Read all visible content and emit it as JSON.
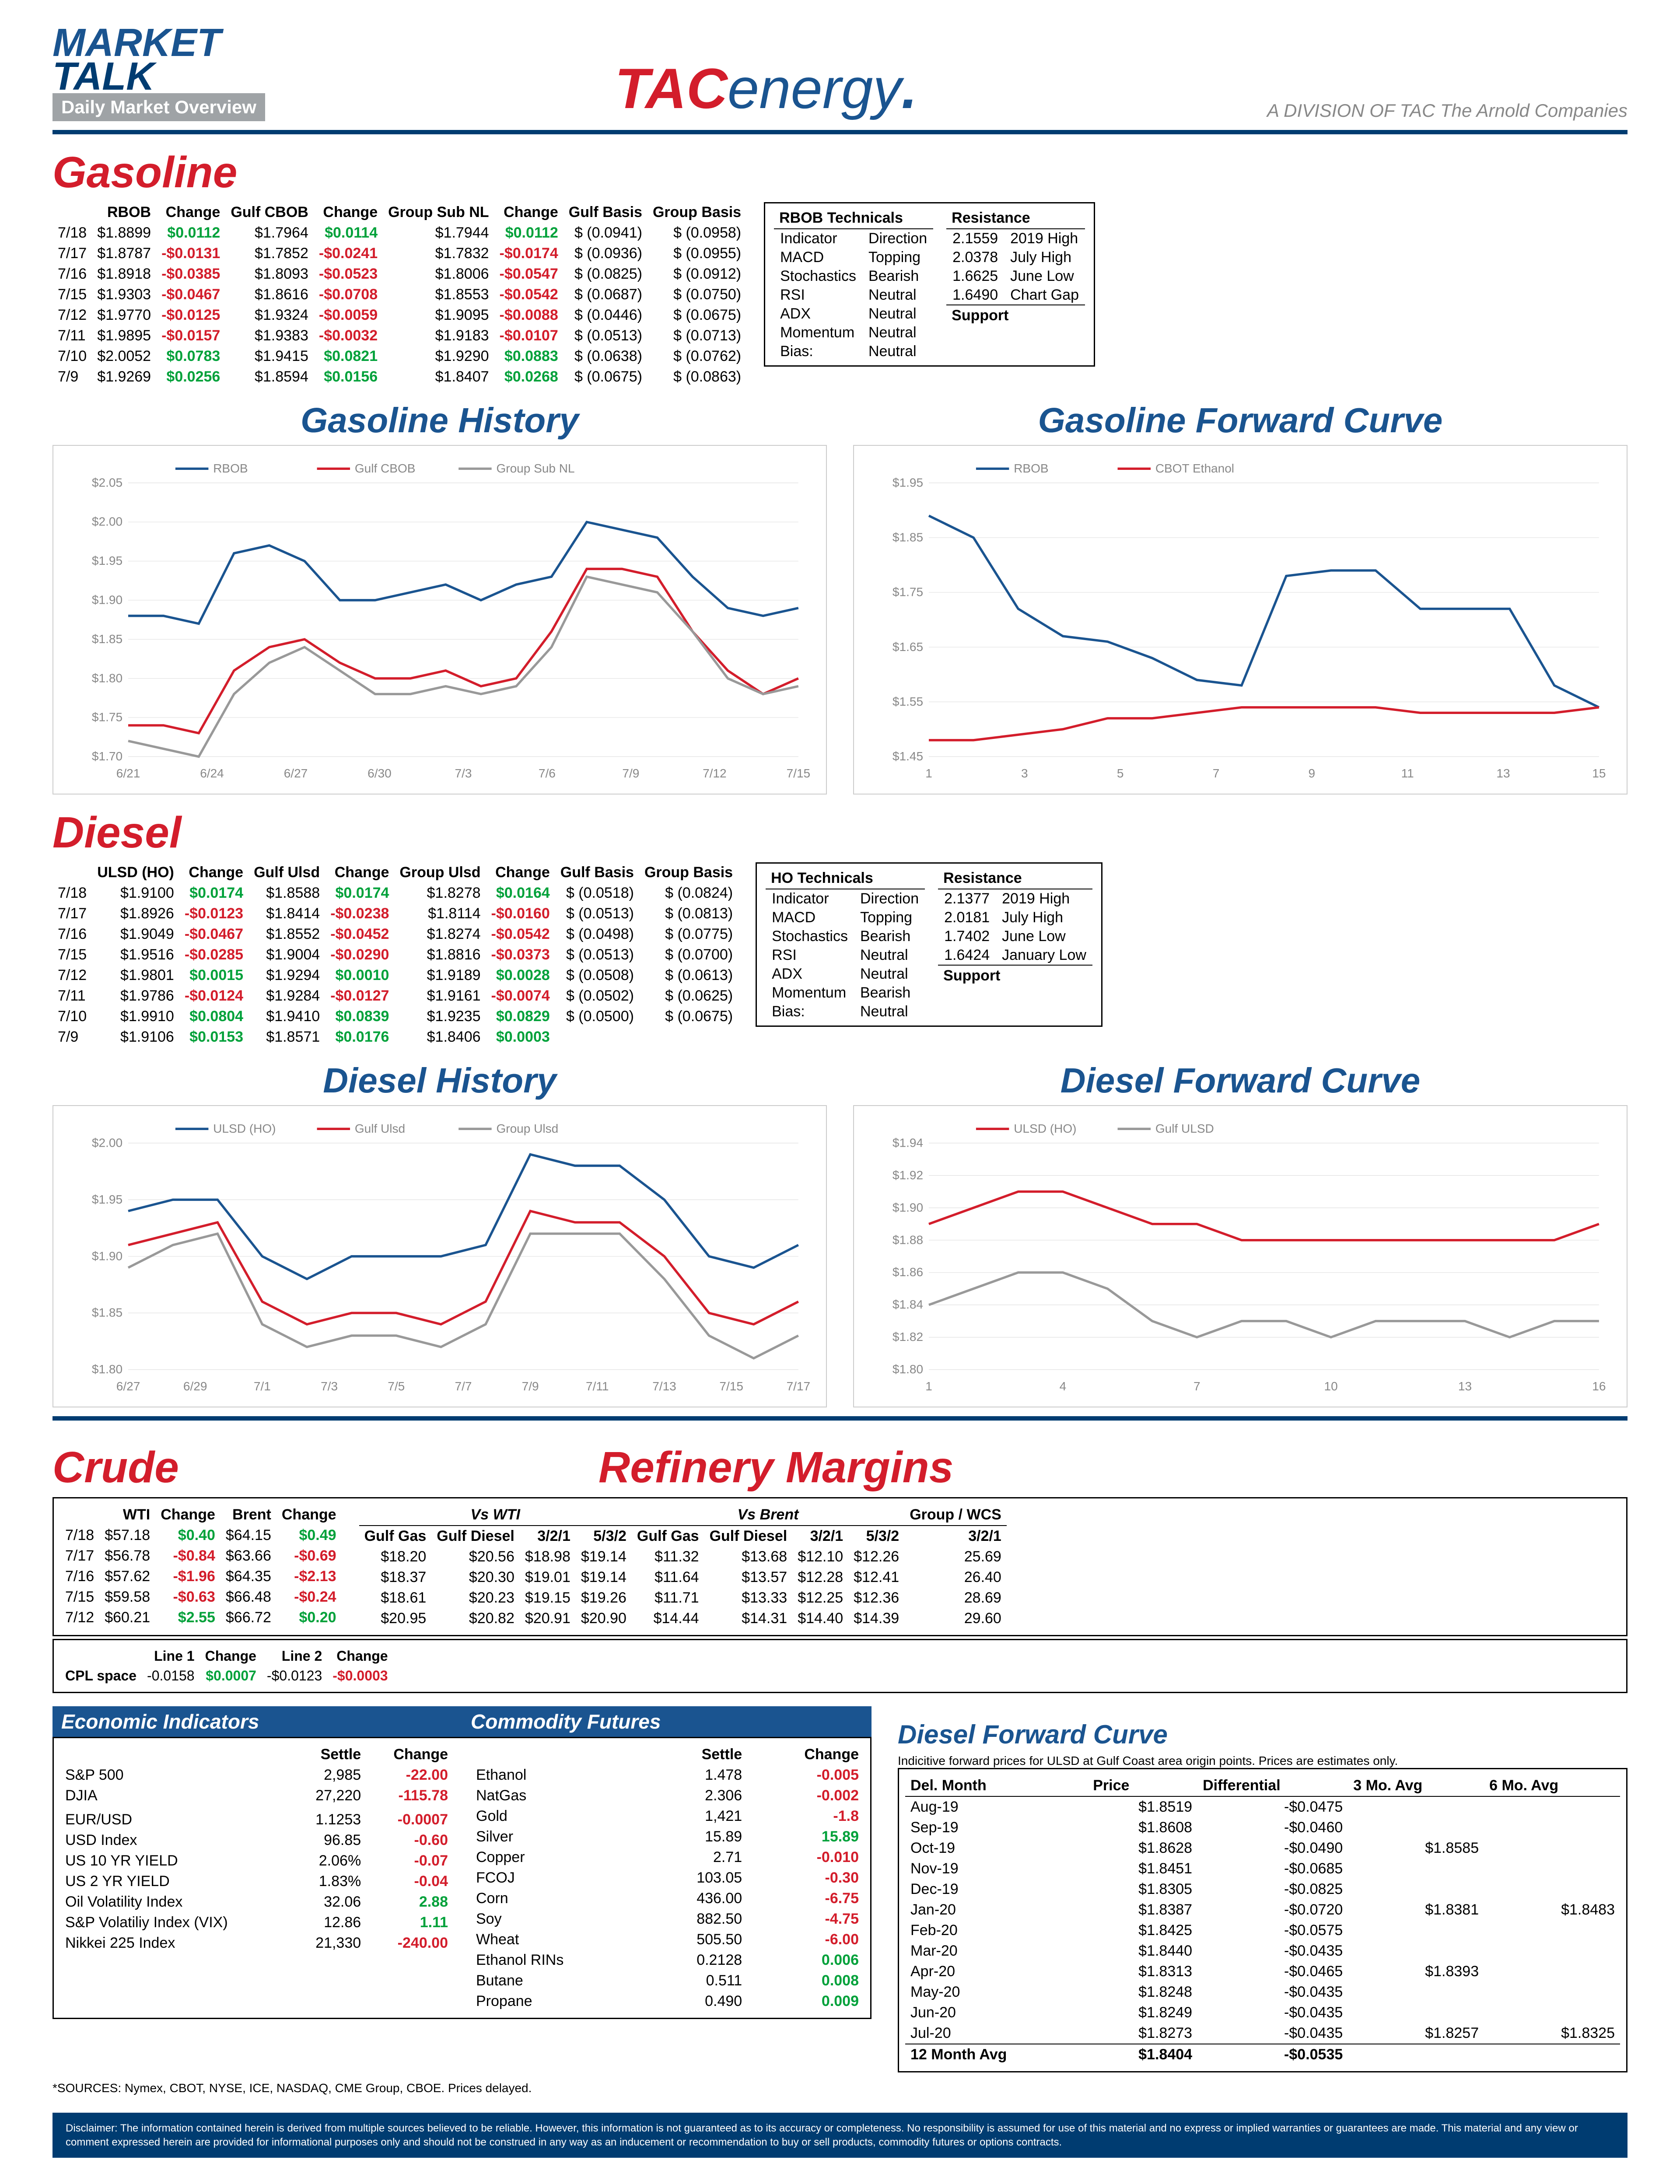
{
  "header": {
    "market": "MARKET",
    "talk": "TALK",
    "dmo": "Daily Market Overview",
    "tac_t": "TAC",
    "tac_e": "energy",
    "tagline": "A DIVISION OF TAC The Arnold Companies"
  },
  "gasoline": {
    "title": "Gasoline",
    "headers": [
      "",
      "RBOB",
      "Change",
      "Gulf CBOB",
      "Change",
      "Group Sub NL",
      "Change",
      "Gulf Basis",
      "Group Basis"
    ],
    "rows": [
      [
        "7/18",
        "$1.8899",
        "$0.0112",
        "$1.7964",
        "$0.0114",
        "$1.7944",
        "$0.0112",
        "$ (0.0941)",
        "$ (0.0958)"
      ],
      [
        "7/17",
        "$1.8787",
        "-$0.0131",
        "$1.7852",
        "-$0.0241",
        "$1.7832",
        "-$0.0174",
        "$ (0.0936)",
        "$ (0.0955)"
      ],
      [
        "7/16",
        "$1.8918",
        "-$0.0385",
        "$1.8093",
        "-$0.0523",
        "$1.8006",
        "-$0.0547",
        "$ (0.0825)",
        "$ (0.0912)"
      ],
      [
        "7/15",
        "$1.9303",
        "-$0.0467",
        "$1.8616",
        "-$0.0708",
        "$1.8553",
        "-$0.0542",
        "$ (0.0687)",
        "$ (0.0750)"
      ],
      [
        "7/12",
        "$1.9770",
        "-$0.0125",
        "$1.9324",
        "-$0.0059",
        "$1.9095",
        "-$0.0088",
        "$ (0.0446)",
        "$ (0.0675)"
      ],
      [
        "7/11",
        "$1.9895",
        "-$0.0157",
        "$1.9383",
        "-$0.0032",
        "$1.9183",
        "-$0.0107",
        "$ (0.0513)",
        "$ (0.0713)"
      ],
      [
        "7/10",
        "$2.0052",
        "$0.0783",
        "$1.9415",
        "$0.0821",
        "$1.9290",
        "$0.0883",
        "$ (0.0638)",
        "$ (0.0762)"
      ],
      [
        "7/9",
        "$1.9269",
        "$0.0256",
        "$1.8594",
        "$0.0156",
        "$1.8407",
        "$0.0268",
        "$ (0.0675)",
        "$ (0.0863)"
      ]
    ],
    "tech": {
      "title": "RBOB Technicals",
      "rows": [
        [
          "Indicator",
          "Direction"
        ],
        [
          "MACD",
          "Topping"
        ],
        [
          "Stochastics",
          "Bearish"
        ],
        [
          "RSI",
          "Neutral"
        ],
        [
          "ADX",
          "Neutral"
        ],
        [
          "Momentum",
          "Neutral"
        ],
        [
          "Bias:",
          "Neutral"
        ]
      ],
      "res_title": "Resistance",
      "res": [
        [
          "2.1559",
          "2019 High"
        ],
        [
          "2.0378",
          "July High"
        ],
        [
          "1.6625",
          "June Low"
        ],
        [
          "1.6490",
          "Chart Gap"
        ]
      ],
      "sup_title": "Support"
    },
    "history": {
      "title": "Gasoline History",
      "series": [
        {
          "name": "RBOB",
          "color": "#1a5490"
        },
        {
          "name": "Gulf CBOB",
          "color": "#d31d2b"
        },
        {
          "name": "Group Sub NL",
          "color": "#999"
        }
      ],
      "xlabels": [
        "6/21",
        "6/24",
        "6/27",
        "6/30",
        "7/3",
        "7/6",
        "7/9",
        "7/12",
        "7/15"
      ],
      "ylabels": [
        "$1.70",
        "$1.75",
        "$1.80",
        "$1.85",
        "$1.90",
        "$1.95",
        "$2.00",
        "$2.05"
      ],
      "rbob": [
        1.88,
        1.88,
        1.87,
        1.96,
        1.97,
        1.95,
        1.9,
        1.9,
        1.91,
        1.92,
        1.9,
        1.92,
        1.93,
        2.0,
        1.99,
        1.98,
        1.93,
        1.89,
        1.88,
        1.89
      ],
      "cbob": [
        1.74,
        1.74,
        1.73,
        1.81,
        1.84,
        1.85,
        1.82,
        1.8,
        1.8,
        1.81,
        1.79,
        1.8,
        1.86,
        1.94,
        1.94,
        1.93,
        1.86,
        1.81,
        1.78,
        1.8
      ],
      "group": [
        1.72,
        1.71,
        1.7,
        1.78,
        1.82,
        1.84,
        1.81,
        1.78,
        1.78,
        1.79,
        1.78,
        1.79,
        1.84,
        1.93,
        1.92,
        1.91,
        1.86,
        1.8,
        1.78,
        1.79
      ],
      "ymin": 1.7,
      "ymax": 2.05
    },
    "forward": {
      "title": "Gasoline Forward Curve",
      "series": [
        {
          "name": "RBOB",
          "color": "#1a5490"
        },
        {
          "name": "CBOT Ethanol",
          "color": "#d31d2b"
        }
      ],
      "xlabels": [
        "1",
        "3",
        "5",
        "7",
        "9",
        "11",
        "13",
        "15"
      ],
      "ylabels": [
        "$1.45",
        "$1.55",
        "$1.65",
        "$1.75",
        "$1.85",
        "$1.95"
      ],
      "rbob": [
        1.89,
        1.85,
        1.72,
        1.67,
        1.66,
        1.63,
        1.59,
        1.58,
        1.78,
        1.79,
        1.79,
        1.72,
        1.72,
        1.72,
        1.58,
        1.54
      ],
      "eth": [
        1.48,
        1.48,
        1.49,
        1.5,
        1.52,
        1.52,
        1.53,
        1.54,
        1.54,
        1.54,
        1.54,
        1.53,
        1.53,
        1.53,
        1.53,
        1.54
      ],
      "ymin": 1.45,
      "ymax": 1.95
    }
  },
  "diesel": {
    "title": "Diesel",
    "headers": [
      "",
      "ULSD (HO)",
      "Change",
      "Gulf Ulsd",
      "Change",
      "Group Ulsd",
      "Change",
      "Gulf Basis",
      "Group Basis"
    ],
    "rows": [
      [
        "7/18",
        "$1.9100",
        "$0.0174",
        "$1.8588",
        "$0.0174",
        "$1.8278",
        "$0.0164",
        "$ (0.0518)",
        "$ (0.0824)"
      ],
      [
        "7/17",
        "$1.8926",
        "-$0.0123",
        "$1.8414",
        "-$0.0238",
        "$1.8114",
        "-$0.0160",
        "$ (0.0513)",
        "$ (0.0813)"
      ],
      [
        "7/16",
        "$1.9049",
        "-$0.0467",
        "$1.8552",
        "-$0.0452",
        "$1.8274",
        "-$0.0542",
        "$ (0.0498)",
        "$ (0.0775)"
      ],
      [
        "7/15",
        "$1.9516",
        "-$0.0285",
        "$1.9004",
        "-$0.0290",
        "$1.8816",
        "-$0.0373",
        "$ (0.0513)",
        "$ (0.0700)"
      ],
      [
        "7/12",
        "$1.9801",
        "$0.0015",
        "$1.9294",
        "$0.0010",
        "$1.9189",
        "$0.0028",
        "$ (0.0508)",
        "$ (0.0613)"
      ],
      [
        "7/11",
        "$1.9786",
        "-$0.0124",
        "$1.9284",
        "-$0.0127",
        "$1.9161",
        "-$0.0074",
        "$ (0.0502)",
        "$ (0.0625)"
      ],
      [
        "7/10",
        "$1.9910",
        "$0.0804",
        "$1.9410",
        "$0.0839",
        "$1.9235",
        "$0.0829",
        "$ (0.0500)",
        "$ (0.0675)"
      ],
      [
        "7/9",
        "$1.9106",
        "$0.0153",
        "$1.8571",
        "$0.0176",
        "$1.8406",
        "$0.0003",
        "",
        ""
      ]
    ],
    "tech": {
      "title": "HO Technicals",
      "rows": [
        [
          "Indicator",
          "Direction"
        ],
        [
          "MACD",
          "Topping"
        ],
        [
          "Stochastics",
          "Bearish"
        ],
        [
          "RSI",
          "Neutral"
        ],
        [
          "ADX",
          "Neutral"
        ],
        [
          "Momentum",
          "Bearish"
        ],
        [
          "Bias:",
          "Neutral"
        ]
      ],
      "res_title": "Resistance",
      "res": [
        [
          "2.1377",
          "2019 High"
        ],
        [
          "2.0181",
          "July High"
        ],
        [
          "1.7402",
          "June Low"
        ],
        [
          "1.6424",
          "January Low"
        ]
      ],
      "sup_title": "Support"
    },
    "history": {
      "title": "Diesel History",
      "series": [
        {
          "name": "ULSD (HO)",
          "color": "#1a5490"
        },
        {
          "name": "Gulf Ulsd",
          "color": "#d31d2b"
        },
        {
          "name": "Group Ulsd",
          "color": "#999"
        }
      ],
      "xlabels": [
        "6/27",
        "6/29",
        "7/1",
        "7/3",
        "7/5",
        "7/7",
        "7/9",
        "7/11",
        "7/13",
        "7/15",
        "7/17"
      ],
      "ylabels": [
        "$1.80",
        "$1.85",
        "$1.90",
        "$1.95",
        "$2.00"
      ],
      "ulsd": [
        1.94,
        1.95,
        1.95,
        1.9,
        1.88,
        1.9,
        1.9,
        1.9,
        1.91,
        1.99,
        1.98,
        1.98,
        1.95,
        1.9,
        1.89,
        1.91
      ],
      "gulf": [
        1.91,
        1.92,
        1.93,
        1.86,
        1.84,
        1.85,
        1.85,
        1.84,
        1.86,
        1.94,
        1.93,
        1.93,
        1.9,
        1.85,
        1.84,
        1.86
      ],
      "group": [
        1.89,
        1.91,
        1.92,
        1.84,
        1.82,
        1.83,
        1.83,
        1.82,
        1.84,
        1.92,
        1.92,
        1.92,
        1.88,
        1.83,
        1.81,
        1.83
      ],
      "ymin": 1.8,
      "ymax": 2.0
    },
    "forward": {
      "title": "Diesel Forward Curve",
      "series": [
        {
          "name": "ULSD (HO)",
          "color": "#d31d2b"
        },
        {
          "name": "Gulf ULSD",
          "color": "#999"
        }
      ],
      "xlabels": [
        "1",
        "4",
        "7",
        "10",
        "13",
        "16"
      ],
      "ylabels": [
        "$1.80",
        "$1.82",
        "$1.84",
        "$1.86",
        "$1.88",
        "$1.90",
        "$1.92",
        "$1.94"
      ],
      "ulsd": [
        1.89,
        1.9,
        1.91,
        1.91,
        1.9,
        1.89,
        1.89,
        1.88,
        1.88,
        1.88,
        1.88,
        1.88,
        1.88,
        1.88,
        1.88,
        1.89
      ],
      "gulf": [
        1.84,
        1.85,
        1.86,
        1.86,
        1.85,
        1.83,
        1.82,
        1.83,
        1.83,
        1.82,
        1.83,
        1.83,
        1.83,
        1.82,
        1.83,
        1.83
      ],
      "ymin": 1.8,
      "ymax": 1.94
    }
  },
  "crude": {
    "title": "Crude",
    "headers": [
      "",
      "WTI",
      "Change",
      "Brent",
      "Change"
    ],
    "rows": [
      [
        "7/18",
        "$57.18",
        "$0.40",
        "$64.15",
        "$0.49"
      ],
      [
        "7/17",
        "$56.78",
        "-$0.84",
        "$63.66",
        "-$0.69"
      ],
      [
        "7/16",
        "$57.62",
        "-$1.96",
        "$64.35",
        "-$2.13"
      ],
      [
        "7/15",
        "$59.58",
        "-$0.63",
        "$66.48",
        "-$0.24"
      ],
      [
        "7/12",
        "$60.21",
        "$2.55",
        "$66.72",
        "$0.20"
      ]
    ],
    "cpl": {
      "label": "CPL space",
      "line1_h": "Line 1",
      "line1": "-0.0158",
      "ch1_h": "Change",
      "ch1": "$0.0007",
      "line2_h": "Line 2",
      "line2": "-$0.0123",
      "ch2_h": "Change",
      "ch2": "-$0.0003"
    }
  },
  "refinery": {
    "title": "Refinery Margins",
    "vs_wti_h": "Vs WTI",
    "vs_brent_h": "Vs Brent",
    "grp_h": "Group / WCS",
    "headers": [
      "Gulf Gas",
      "Gulf Diesel",
      "3/2/1",
      "5/3/2",
      "Gulf Gas",
      "Gulf Diesel",
      "3/2/1",
      "5/3/2",
      "3/2/1"
    ],
    "rows": [
      [
        "$18.20",
        "$20.56",
        "$18.98",
        "$19.14",
        "$11.32",
        "$13.68",
        "$12.10",
        "$12.26",
        "25.69"
      ],
      [
        "$18.37",
        "$20.30",
        "$19.01",
        "$19.14",
        "$11.64",
        "$13.57",
        "$12.28",
        "$12.41",
        "26.40"
      ],
      [
        "$18.61",
        "$20.23",
        "$19.15",
        "$19.26",
        "$11.71",
        "$13.33",
        "$12.25",
        "$12.36",
        "28.69"
      ],
      [
        "$20.95",
        "$20.82",
        "$20.91",
        "$20.90",
        "$14.44",
        "$14.31",
        "$14.40",
        "$14.39",
        "29.60"
      ]
    ]
  },
  "eco": {
    "title": "Economic Indicators",
    "headers": [
      "",
      "Settle",
      "Change"
    ],
    "rows": [
      [
        "S&P 500",
        "2,985",
        "-22.00"
      ],
      [
        "DJIA",
        "27,220",
        "-115.78"
      ],
      [
        "",
        "",
        ""
      ],
      [
        "EUR/USD",
        "1.1253",
        "-0.0007"
      ],
      [
        "USD Index",
        "96.85",
        "-0.60"
      ],
      [
        "US 10 YR YIELD",
        "2.06%",
        "-0.07"
      ],
      [
        "US 2 YR YIELD",
        "1.83%",
        "-0.04"
      ],
      [
        "Oil Volatility Index",
        "32.06",
        "2.88"
      ],
      [
        "S&P Volatiliy Index (VIX)",
        "12.86",
        "1.11"
      ],
      [
        "Nikkei 225 Index",
        "21,330",
        "-240.00"
      ]
    ]
  },
  "commodity": {
    "title": "Commodity Futures",
    "headers": [
      "",
      "Settle",
      "Change"
    ],
    "rows": [
      [
        "Ethanol",
        "1.478",
        "-0.005"
      ],
      [
        "NatGas",
        "2.306",
        "-0.002"
      ],
      [
        "Gold",
        "1,421",
        "-1.8"
      ],
      [
        "Silver",
        "15.89",
        "15.89"
      ],
      [
        "Copper",
        "2.71",
        "-0.010"
      ],
      [
        "FCOJ",
        "103.05",
        "-0.30"
      ],
      [
        "Corn",
        "436.00",
        "-6.75"
      ],
      [
        "Soy",
        "882.50",
        "-4.75"
      ],
      [
        "Wheat",
        "505.50",
        "-6.00"
      ],
      [
        "Ethanol RINs",
        "0.2128",
        "0.006"
      ],
      [
        "Butane",
        "0.511",
        "0.008"
      ],
      [
        "Propane",
        "0.490",
        "0.009"
      ]
    ]
  },
  "dfc_table": {
    "title": "Diesel Forward Curve",
    "note": "Indicitive forward prices for ULSD at Gulf Coast area origin points.  Prices are estimates only.",
    "headers": [
      "Del. Month",
      "Price",
      "Differential",
      "3 Mo. Avg",
      "6 Mo. Avg"
    ],
    "rows": [
      [
        "Aug-19",
        "$1.8519",
        "-$0.0475",
        "",
        ""
      ],
      [
        "Sep-19",
        "$1.8608",
        "-$0.0460",
        "",
        ""
      ],
      [
        "Oct-19",
        "$1.8628",
        "-$0.0490",
        "$1.8585",
        ""
      ],
      [
        "Nov-19",
        "$1.8451",
        "-$0.0685",
        "",
        ""
      ],
      [
        "Dec-19",
        "$1.8305",
        "-$0.0825",
        "",
        ""
      ],
      [
        "Jan-20",
        "$1.8387",
        "-$0.0720",
        "$1.8381",
        "$1.8483"
      ],
      [
        "Feb-20",
        "$1.8425",
        "-$0.0575",
        "",
        ""
      ],
      [
        "Mar-20",
        "$1.8440",
        "-$0.0435",
        "",
        ""
      ],
      [
        "Apr-20",
        "$1.8313",
        "-$0.0465",
        "$1.8393",
        ""
      ],
      [
        "May-20",
        "$1.8248",
        "-$0.0435",
        "",
        ""
      ],
      [
        "Jun-20",
        "$1.8249",
        "-$0.0435",
        "",
        ""
      ],
      [
        "Jul-20",
        "$1.8273",
        "-$0.0435",
        "$1.8257",
        "$1.8325"
      ]
    ],
    "footer": [
      "12 Month Avg",
      "$1.8404",
      "-$0.0535",
      "",
      ""
    ]
  },
  "sources": "*SOURCES: Nymex, CBOT, NYSE, ICE, NASDAQ, CME Group, CBOE.   Prices delayed.",
  "disclaimer": "Disclaimer: The information contained herein is derived from multiple sources believed to be reliable.  However, this information is not guaranteed as to its accuracy or completeness. No responsibility is assumed for use of this material and no express or implied warranties or guarantees are made. This material and any view or comment expressed herein are provided for informational purposes only and should not be construed in any way as an inducement or recommendation to buy or sell products, commodity futures or options contracts."
}
